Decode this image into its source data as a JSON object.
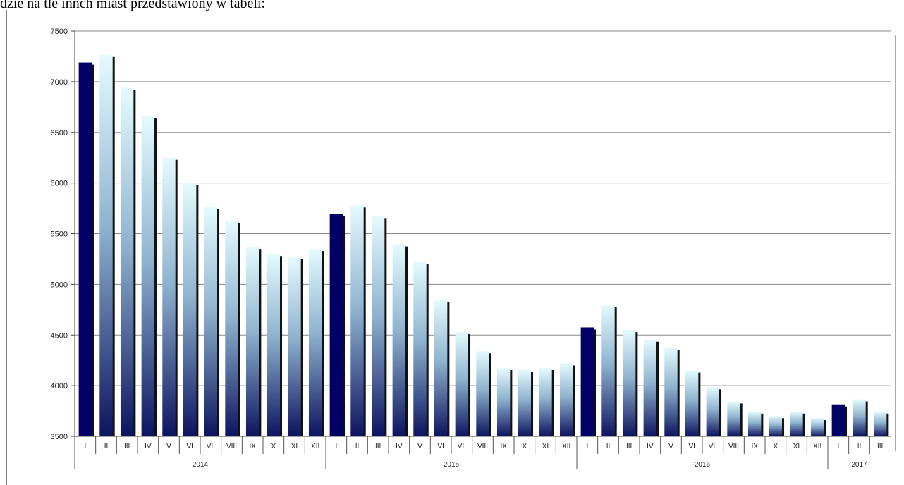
{
  "header_text": "dzie na tle innch miast przedstawiony w tabeli:",
  "chart_data": {
    "type": "bar",
    "title": "",
    "xlabel": "",
    "ylabel": "",
    "ylim": [
      3500,
      7500
    ],
    "yticks": [
      3500,
      4000,
      4500,
      5000,
      5500,
      6000,
      6500,
      7000,
      7500
    ],
    "grid": true,
    "legend": "none",
    "categories": [
      "I",
      "II",
      "III",
      "IV",
      "V",
      "VI",
      "VII",
      "VIII",
      "IX",
      "X",
      "XI",
      "XII",
      "I",
      "II",
      "III",
      "IV",
      "V",
      "VI",
      "VII",
      "VIII",
      "IX",
      "X",
      "XI",
      "XII",
      "I",
      "II",
      "III",
      "IV",
      "V",
      "VI",
      "VII",
      "VIII",
      "IX",
      "X",
      "XI",
      "XII",
      "I",
      "II",
      "III"
    ],
    "years": [
      {
        "label": "2014",
        "count": 12
      },
      {
        "label": "2015",
        "count": 12
      },
      {
        "label": "2016",
        "count": 12
      },
      {
        "label": "2017",
        "count": 3
      }
    ],
    "series": [
      {
        "values": [
          7190,
          7265,
          6940,
          6660,
          6250,
          6000,
          5765,
          5625,
          5370,
          5300,
          5270,
          5350,
          5695,
          5780,
          5675,
          5395,
          5225,
          4850,
          4530,
          4340,
          4175,
          4160,
          4175,
          4220,
          4575,
          4800,
          4550,
          4455,
          4375,
          4150,
          3985,
          3845,
          3745,
          3700,
          3745,
          3680,
          3815,
          3865,
          3745
        ]
      }
    ],
    "colors": {
      "january_bar": "#000066",
      "gradient_top": "#e4fbff",
      "gradient_mid": "#8fb3cf",
      "gradient_bottom": "#0c1460",
      "bar_shadow": "#111111",
      "gridline": "#8a8a8a"
    }
  }
}
